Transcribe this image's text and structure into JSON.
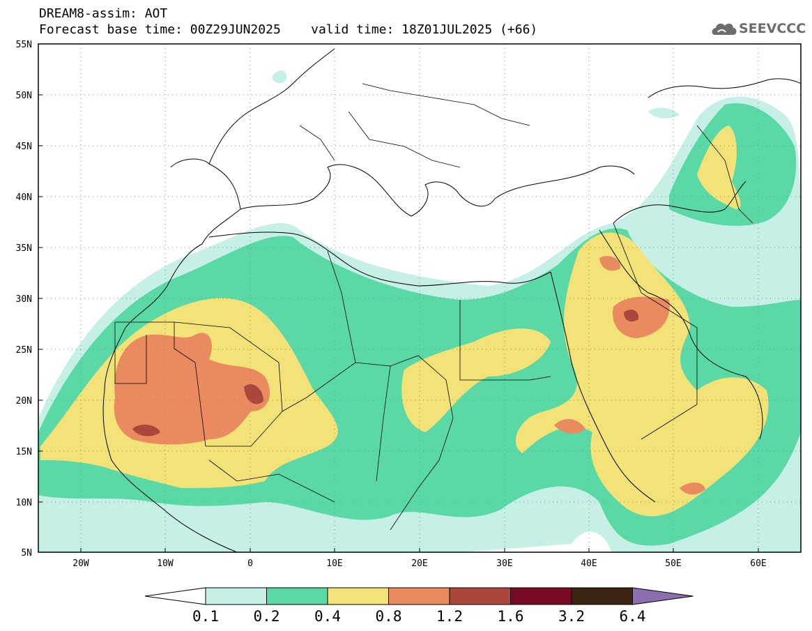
{
  "header": {
    "line1": "DREAM8-assim: AOT",
    "line2": "Forecast base time: 00Z29JUN2025    valid time: 18Z01JUL2025 (+66)"
  },
  "logo": {
    "icon": "cloud-icon",
    "text": "SEEVCCC",
    "color": "#6d6d6d"
  },
  "map": {
    "lon_range": [
      -25,
      65
    ],
    "lat_range": [
      5,
      55
    ],
    "lat_ticks": [
      "55N",
      "50N",
      "45N",
      "40N",
      "35N",
      "30N",
      "25N",
      "20N",
      "15N",
      "10N",
      "5N"
    ],
    "lon_ticks": [
      "20W",
      "10W",
      "0",
      "10E",
      "20E",
      "30E",
      "40E",
      "50E",
      "60E"
    ],
    "grid": "dotted"
  },
  "colorbar": {
    "labels": [
      "0.1",
      "0.2",
      "0.4",
      "0.8",
      "1.2",
      "1.6",
      "3.2",
      "6.4"
    ],
    "colors": [
      "#ffffff",
      "#c6efe6",
      "#5ad9a6",
      "#f2e277",
      "#e98b5e",
      "#a8473a",
      "#7a0a24",
      "#3c2412",
      "#8c6fb1"
    ]
  }
}
